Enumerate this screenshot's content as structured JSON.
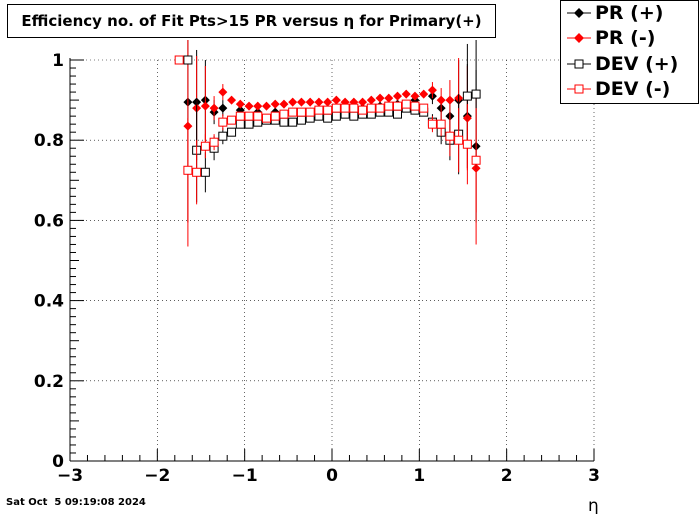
{
  "chart_data": {
    "type": "scatter",
    "title": "Efficiency no. of Fit Pts>15 PR versus η for Primary(+)",
    "xlabel": "η",
    "ylabel": "",
    "xlim": [
      -3,
      3
    ],
    "ylim": [
      0,
      1.0
    ],
    "x_ticks": [
      "−3",
      "−2",
      "−1",
      "0",
      "1",
      "2",
      "3"
    ],
    "y_ticks": [
      "0",
      "0.2",
      "0.4",
      "0.6",
      "0.8",
      "1"
    ],
    "grid": true,
    "legend_position": "top-right",
    "series": [
      {
        "name": "PR (+)",
        "marker": "filled-diamond",
        "color": "#000000",
        "points": [
          {
            "x": -1.65,
            "y": 0.895,
            "err": 0.3
          },
          {
            "x": -1.55,
            "y": 0.895,
            "err": 0.13
          },
          {
            "x": -1.45,
            "y": 0.9,
            "err": 0.1
          },
          {
            "x": -1.35,
            "y": 0.87,
            "err": 0.03
          },
          {
            "x": -1.25,
            "y": 0.88,
            "err": 0.02
          },
          {
            "x": -1.05,
            "y": 0.875,
            "err": 0.01
          },
          {
            "x": -0.85,
            "y": 0.87,
            "err": 0.01
          },
          {
            "x": -0.65,
            "y": 0.87,
            "err": 0.01
          },
          {
            "x": -0.45,
            "y": 0.87,
            "err": 0.01
          },
          {
            "x": -0.25,
            "y": 0.87,
            "err": 0.01
          },
          {
            "x": -0.05,
            "y": 0.875,
            "err": 0.01
          },
          {
            "x": 0.15,
            "y": 0.88,
            "err": 0.01
          },
          {
            "x": 0.35,
            "y": 0.88,
            "err": 0.01
          },
          {
            "x": 0.55,
            "y": 0.885,
            "err": 0.01
          },
          {
            "x": 0.75,
            "y": 0.89,
            "err": 0.01
          },
          {
            "x": 0.95,
            "y": 0.9,
            "err": 0.01
          },
          {
            "x": 1.15,
            "y": 0.91,
            "err": 0.02
          },
          {
            "x": 1.25,
            "y": 0.88,
            "err": 0.03
          },
          {
            "x": 1.35,
            "y": 0.86,
            "err": 0.05
          },
          {
            "x": 1.45,
            "y": 0.9,
            "err": 0.1
          },
          {
            "x": 1.55,
            "y": 0.86,
            "err": 0.13
          },
          {
            "x": 1.65,
            "y": 0.785,
            "err": 0.19
          }
        ]
      },
      {
        "name": "PR (-)",
        "marker": "filled-diamond",
        "color": "#ff0000",
        "points": [
          {
            "x": -1.65,
            "y": 0.835,
            "err": 0.3
          },
          {
            "x": -1.55,
            "y": 0.88,
            "err": 0.13
          },
          {
            "x": -1.45,
            "y": 0.885,
            "err": 0.1
          },
          {
            "x": -1.35,
            "y": 0.88,
            "err": 0.03
          },
          {
            "x": -1.25,
            "y": 0.92,
            "err": 0.02
          },
          {
            "x": -1.15,
            "y": 0.9,
            "err": 0.01
          },
          {
            "x": -1.05,
            "y": 0.89,
            "err": 0.01
          },
          {
            "x": -0.95,
            "y": 0.885,
            "err": 0.01
          },
          {
            "x": -0.85,
            "y": 0.885,
            "err": 0.01
          },
          {
            "x": -0.75,
            "y": 0.885,
            "err": 0.01
          },
          {
            "x": -0.65,
            "y": 0.89,
            "err": 0.01
          },
          {
            "x": -0.55,
            "y": 0.89,
            "err": 0.01
          },
          {
            "x": -0.45,
            "y": 0.895,
            "err": 0.01
          },
          {
            "x": -0.35,
            "y": 0.895,
            "err": 0.01
          },
          {
            "x": -0.25,
            "y": 0.895,
            "err": 0.01
          },
          {
            "x": -0.15,
            "y": 0.895,
            "err": 0.01
          },
          {
            "x": -0.05,
            "y": 0.895,
            "err": 0.01
          },
          {
            "x": 0.05,
            "y": 0.9,
            "err": 0.01
          },
          {
            "x": 0.15,
            "y": 0.895,
            "err": 0.01
          },
          {
            "x": 0.25,
            "y": 0.895,
            "err": 0.01
          },
          {
            "x": 0.35,
            "y": 0.895,
            "err": 0.01
          },
          {
            "x": 0.45,
            "y": 0.9,
            "err": 0.01
          },
          {
            "x": 0.55,
            "y": 0.905,
            "err": 0.01
          },
          {
            "x": 0.65,
            "y": 0.905,
            "err": 0.01
          },
          {
            "x": 0.75,
            "y": 0.91,
            "err": 0.01
          },
          {
            "x": 0.85,
            "y": 0.915,
            "err": 0.01
          },
          {
            "x": 0.95,
            "y": 0.91,
            "err": 0.01
          },
          {
            "x": 1.05,
            "y": 0.915,
            "err": 0.01
          },
          {
            "x": 1.15,
            "y": 0.925,
            "err": 0.02
          },
          {
            "x": 1.25,
            "y": 0.9,
            "err": 0.03
          },
          {
            "x": 1.35,
            "y": 0.9,
            "err": 0.05
          },
          {
            "x": 1.45,
            "y": 0.905,
            "err": 0.1
          },
          {
            "x": 1.55,
            "y": 0.855,
            "err": 0.13
          },
          {
            "x": 1.65,
            "y": 0.73,
            "err": 0.19
          }
        ]
      },
      {
        "name": "DEV (+)",
        "marker": "open-square",
        "color": "#000000",
        "points": [
          {
            "x": -1.65,
            "y": 1.0,
            "err": 0.0
          },
          {
            "x": -1.55,
            "y": 0.775,
            "err": 0.13
          },
          {
            "x": -1.45,
            "y": 0.72,
            "err": 0.05
          },
          {
            "x": -1.35,
            "y": 0.78,
            "err": 0.03
          },
          {
            "x": -1.25,
            "y": 0.81,
            "err": 0.02
          },
          {
            "x": -1.15,
            "y": 0.82,
            "err": 0.01
          },
          {
            "x": -1.05,
            "y": 0.84,
            "err": 0.01
          },
          {
            "x": -0.95,
            "y": 0.84,
            "err": 0.01
          },
          {
            "x": -0.85,
            "y": 0.845,
            "err": 0.01
          },
          {
            "x": -0.75,
            "y": 0.85,
            "err": 0.01
          },
          {
            "x": -0.65,
            "y": 0.85,
            "err": 0.01
          },
          {
            "x": -0.55,
            "y": 0.845,
            "err": 0.01
          },
          {
            "x": -0.45,
            "y": 0.845,
            "err": 0.01
          },
          {
            "x": -0.35,
            "y": 0.85,
            "err": 0.01
          },
          {
            "x": -0.25,
            "y": 0.855,
            "err": 0.01
          },
          {
            "x": -0.15,
            "y": 0.86,
            "err": 0.01
          },
          {
            "x": -0.05,
            "y": 0.855,
            "err": 0.01
          },
          {
            "x": 0.05,
            "y": 0.86,
            "err": 0.01
          },
          {
            "x": 0.15,
            "y": 0.865,
            "err": 0.01
          },
          {
            "x": 0.25,
            "y": 0.86,
            "err": 0.01
          },
          {
            "x": 0.35,
            "y": 0.865,
            "err": 0.01
          },
          {
            "x": 0.45,
            "y": 0.865,
            "err": 0.01
          },
          {
            "x": 0.55,
            "y": 0.87,
            "err": 0.01
          },
          {
            "x": 0.65,
            "y": 0.87,
            "err": 0.01
          },
          {
            "x": 0.75,
            "y": 0.865,
            "err": 0.01
          },
          {
            "x": 0.85,
            "y": 0.88,
            "err": 0.01
          },
          {
            "x": 0.95,
            "y": 0.875,
            "err": 0.01
          },
          {
            "x": 1.05,
            "y": 0.87,
            "err": 0.01
          },
          {
            "x": 1.15,
            "y": 0.845,
            "err": 0.02
          },
          {
            "x": 1.25,
            "y": 0.82,
            "err": 0.03
          },
          {
            "x": 1.35,
            "y": 0.8,
            "err": 0.05
          },
          {
            "x": 1.45,
            "y": 0.815,
            "err": 0.1
          },
          {
            "x": 1.55,
            "y": 0.91,
            "err": 0.13
          },
          {
            "x": 1.65,
            "y": 0.915,
            "err": 0.19
          }
        ]
      },
      {
        "name": "DEV (-)",
        "marker": "open-square",
        "color": "#ff0000",
        "points": [
          {
            "x": -1.75,
            "y": 1.0,
            "err": 0.0
          },
          {
            "x": -1.65,
            "y": 0.725,
            "err": 0.13
          },
          {
            "x": -1.55,
            "y": 0.72,
            "err": 0.08
          },
          {
            "x": -1.45,
            "y": 0.785,
            "err": 0.03
          },
          {
            "x": -1.35,
            "y": 0.795,
            "err": 0.02
          },
          {
            "x": -1.25,
            "y": 0.845,
            "err": 0.02
          },
          {
            "x": -1.15,
            "y": 0.85,
            "err": 0.01
          },
          {
            "x": -1.05,
            "y": 0.86,
            "err": 0.01
          },
          {
            "x": -0.95,
            "y": 0.86,
            "err": 0.01
          },
          {
            "x": -0.85,
            "y": 0.86,
            "err": 0.01
          },
          {
            "x": -0.75,
            "y": 0.855,
            "err": 0.01
          },
          {
            "x": -0.65,
            "y": 0.86,
            "err": 0.01
          },
          {
            "x": -0.55,
            "y": 0.865,
            "err": 0.01
          },
          {
            "x": -0.45,
            "y": 0.87,
            "err": 0.01
          },
          {
            "x": -0.35,
            "y": 0.87,
            "err": 0.01
          },
          {
            "x": -0.25,
            "y": 0.87,
            "err": 0.01
          },
          {
            "x": -0.15,
            "y": 0.875,
            "err": 0.01
          },
          {
            "x": -0.05,
            "y": 0.875,
            "err": 0.01
          },
          {
            "x": 0.05,
            "y": 0.88,
            "err": 0.01
          },
          {
            "x": 0.15,
            "y": 0.88,
            "err": 0.01
          },
          {
            "x": 0.25,
            "y": 0.88,
            "err": 0.01
          },
          {
            "x": 0.35,
            "y": 0.875,
            "err": 0.01
          },
          {
            "x": 0.45,
            "y": 0.88,
            "err": 0.01
          },
          {
            "x": 0.55,
            "y": 0.88,
            "err": 0.01
          },
          {
            "x": 0.65,
            "y": 0.885,
            "err": 0.01
          },
          {
            "x": 0.75,
            "y": 0.885,
            "err": 0.01
          },
          {
            "x": 0.85,
            "y": 0.89,
            "err": 0.01
          },
          {
            "x": 0.95,
            "y": 0.885,
            "err": 0.01
          },
          {
            "x": 1.05,
            "y": 0.88,
            "err": 0.01
          },
          {
            "x": 1.15,
            "y": 0.84,
            "err": 0.02
          },
          {
            "x": 1.25,
            "y": 0.84,
            "err": 0.03
          },
          {
            "x": 1.35,
            "y": 0.81,
            "err": 0.05
          },
          {
            "x": 1.45,
            "y": 0.8,
            "err": 0.08
          },
          {
            "x": 1.55,
            "y": 0.79,
            "err": 0.1
          },
          {
            "x": 1.65,
            "y": 0.75,
            "err": 0.13
          }
        ]
      }
    ]
  },
  "footer": {
    "timestamp": "Sat Oct  5 09:19:08 2024"
  }
}
